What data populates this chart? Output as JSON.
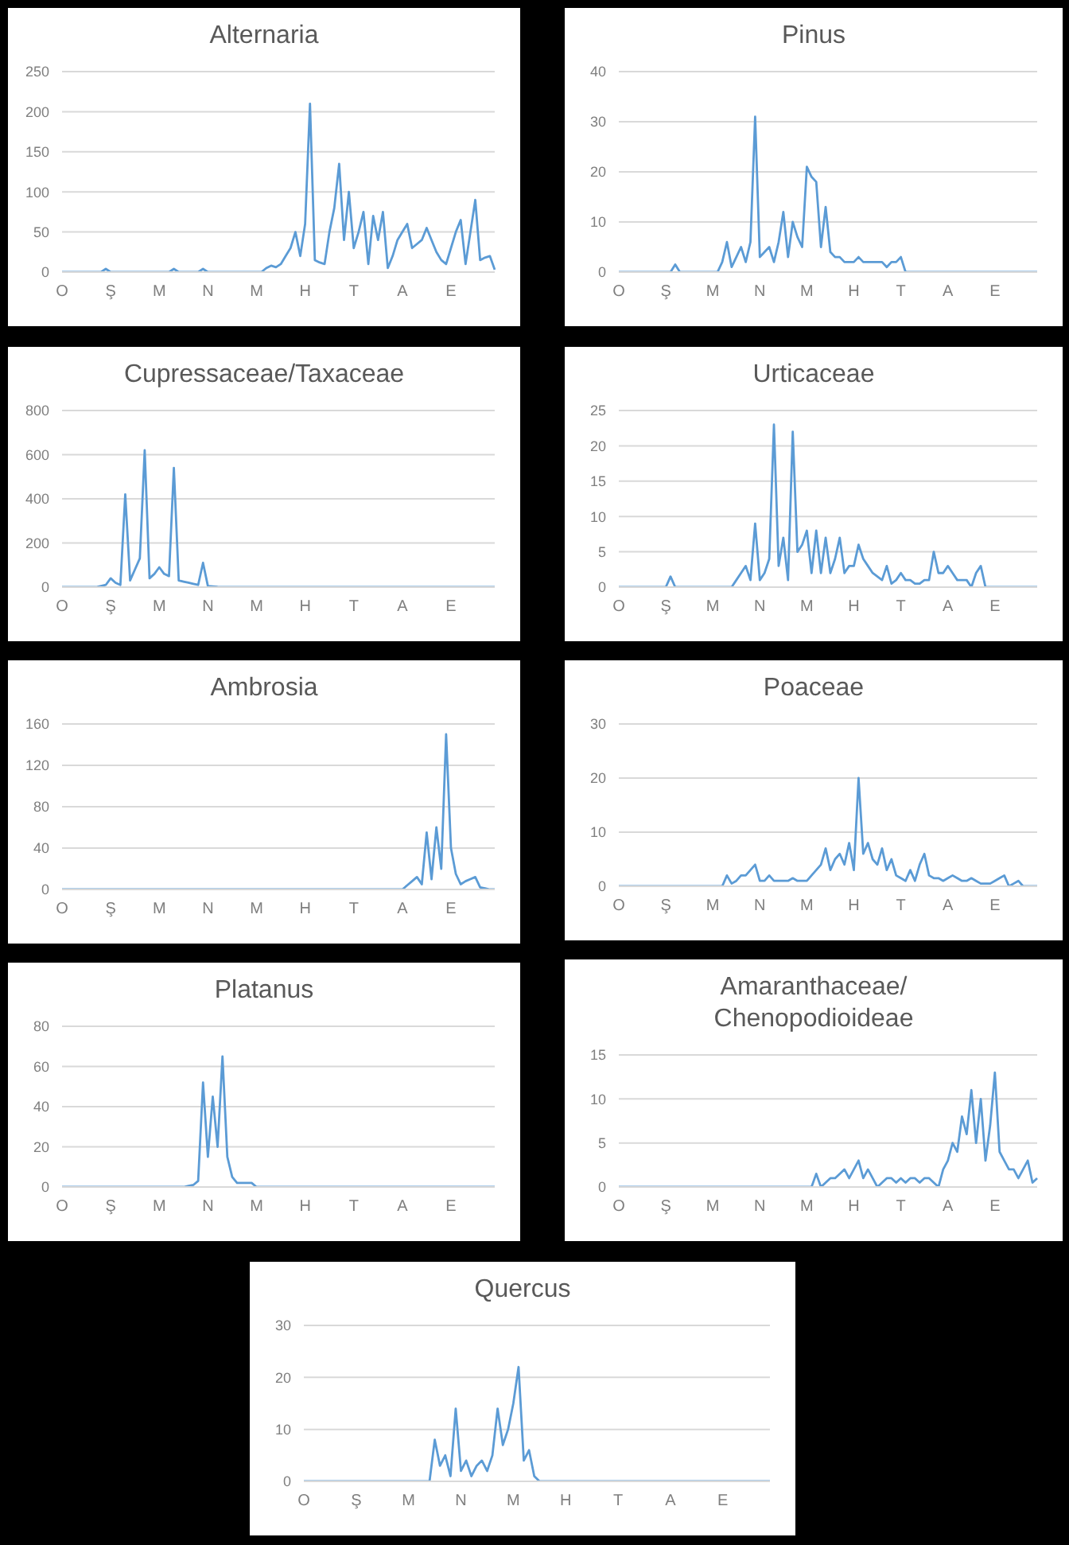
{
  "chart_data": [
    {
      "type": "line",
      "title": "Alternaria",
      "color": "#5b9bd5",
      "grid": "y",
      "ylim": [
        0,
        250
      ],
      "yticks": [
        0,
        50,
        100,
        150,
        200,
        250
      ],
      "categories": [
        "O",
        null,
        null,
        null,
        null,
        null,
        null,
        null,
        null,
        null,
        "Ş",
        null,
        null,
        null,
        null,
        null,
        null,
        null,
        null,
        null,
        "M",
        null,
        null,
        null,
        null,
        null,
        null,
        null,
        null,
        null,
        "N",
        null,
        null,
        null,
        null,
        null,
        null,
        null,
        null,
        null,
        "M",
        null,
        null,
        null,
        null,
        null,
        null,
        null,
        null,
        null,
        "H",
        null,
        null,
        null,
        null,
        null,
        null,
        null,
        null,
        null,
        "T",
        null,
        null,
        null,
        null,
        null,
        null,
        null,
        null,
        null,
        "A",
        null,
        null,
        null,
        null,
        null,
        null,
        null,
        null,
        null,
        "E",
        null,
        null,
        null,
        null,
        null,
        null,
        null,
        null,
        null
      ],
      "values": [
        0,
        0,
        0,
        0,
        0,
        0,
        0,
        0,
        0,
        4,
        0,
        0,
        0,
        0,
        0,
        0,
        0,
        0,
        0,
        0,
        0,
        0,
        0,
        4,
        0,
        0,
        0,
        0,
        0,
        4,
        0,
        0,
        0,
        0,
        0,
        0,
        0,
        0,
        0,
        0,
        0,
        0,
        5,
        8,
        6,
        10,
        20,
        30,
        50,
        20,
        60,
        210,
        15,
        12,
        10,
        50,
        80,
        135,
        40,
        100,
        30,
        50,
        75,
        10,
        70,
        40,
        75,
        5,
        20,
        40,
        50,
        60,
        30,
        35,
        40,
        55,
        40,
        25,
        15,
        10,
        30,
        50,
        65,
        10,
        50,
        90,
        15,
        18,
        20,
        3
      ]
    },
    {
      "type": "line",
      "title": "Pinus",
      "color": "#5b9bd5",
      "grid": "y",
      "ylim": [
        0,
        40
      ],
      "yticks": [
        0,
        10,
        20,
        30,
        40
      ],
      "categories": [
        "O",
        null,
        null,
        null,
        null,
        null,
        null,
        null,
        null,
        null,
        "Ş",
        null,
        null,
        null,
        null,
        null,
        null,
        null,
        null,
        null,
        "M",
        null,
        null,
        null,
        null,
        null,
        null,
        null,
        null,
        null,
        "N",
        null,
        null,
        null,
        null,
        null,
        null,
        null,
        null,
        null,
        "M",
        null,
        null,
        null,
        null,
        null,
        null,
        null,
        null,
        null,
        "H",
        null,
        null,
        null,
        null,
        null,
        null,
        null,
        null,
        null,
        "T",
        null,
        null,
        null,
        null,
        null,
        null,
        null,
        null,
        null,
        "A",
        null,
        null,
        null,
        null,
        null,
        null,
        null,
        null,
        null,
        "E",
        null,
        null,
        null,
        null,
        null,
        null,
        null,
        null,
        null
      ],
      "values": [
        0,
        0,
        0,
        0,
        0,
        0,
        0,
        0,
        0,
        0,
        0,
        0,
        1.5,
        0,
        0,
        0,
        0,
        0,
        0,
        0,
        0,
        0,
        2,
        6,
        1,
        3,
        5,
        2,
        6,
        31,
        3,
        4,
        5,
        2,
        6,
        12,
        3,
        10,
        7,
        5,
        21,
        19,
        18,
        5,
        13,
        4,
        3,
        3,
        2,
        2,
        2,
        3,
        2,
        2,
        2,
        2,
        2,
        1,
        2,
        2,
        3,
        0,
        0,
        0,
        0,
        0,
        0,
        0,
        0,
        0,
        0,
        0,
        0,
        0,
        0,
        0,
        0,
        0,
        0,
        0,
        0,
        0,
        0,
        0,
        0,
        0,
        0,
        0,
        0,
        0
      ]
    },
    {
      "type": "line",
      "title": "Cupressaceae/Taxaceae",
      "color": "#5b9bd5",
      "grid": "y",
      "ylim": [
        0,
        800
      ],
      "yticks": [
        0,
        200,
        400,
        600,
        800
      ],
      "categories": [
        "O",
        null,
        null,
        null,
        null,
        null,
        null,
        null,
        null,
        null,
        "Ş",
        null,
        null,
        null,
        null,
        null,
        null,
        null,
        null,
        null,
        "M",
        null,
        null,
        null,
        null,
        null,
        null,
        null,
        null,
        null,
        "N",
        null,
        null,
        null,
        null,
        null,
        null,
        null,
        null,
        null,
        "M",
        null,
        null,
        null,
        null,
        null,
        null,
        null,
        null,
        null,
        "H",
        null,
        null,
        null,
        null,
        null,
        null,
        null,
        null,
        null,
        "T",
        null,
        null,
        null,
        null,
        null,
        null,
        null,
        null,
        null,
        "A",
        null,
        null,
        null,
        null,
        null,
        null,
        null,
        null,
        null,
        "E",
        null,
        null,
        null,
        null,
        null,
        null,
        null,
        null,
        null
      ],
      "values": [
        0,
        0,
        0,
        0,
        0,
        0,
        0,
        0,
        5,
        10,
        40,
        20,
        10,
        420,
        30,
        80,
        130,
        620,
        40,
        60,
        90,
        60,
        50,
        540,
        30,
        25,
        20,
        15,
        10,
        110,
        5,
        3,
        1,
        0,
        0,
        0,
        0,
        0,
        0,
        0,
        0,
        0,
        0,
        0,
        0,
        0,
        0,
        0,
        0,
        0,
        0,
        0,
        0,
        0,
        0,
        0,
        0,
        0,
        0,
        0,
        0,
        0,
        0,
        0,
        0,
        0,
        0,
        0,
        0,
        0,
        0,
        0,
        0,
        0,
        0,
        0,
        0,
        0,
        0,
        0,
        0,
        0,
        0,
        0,
        0,
        0,
        0,
        0,
        0,
        0
      ]
    },
    {
      "type": "line",
      "title": "Urticaceae",
      "color": "#5b9bd5",
      "grid": "y",
      "ylim": [
        0,
        25
      ],
      "yticks": [
        0,
        5,
        10,
        15,
        20,
        25
      ],
      "categories": [
        "O",
        null,
        null,
        null,
        null,
        null,
        null,
        null,
        null,
        null,
        "Ş",
        null,
        null,
        null,
        null,
        null,
        null,
        null,
        null,
        null,
        "M",
        null,
        null,
        null,
        null,
        null,
        null,
        null,
        null,
        null,
        "N",
        null,
        null,
        null,
        null,
        null,
        null,
        null,
        null,
        null,
        "M",
        null,
        null,
        null,
        null,
        null,
        null,
        null,
        null,
        null,
        "H",
        null,
        null,
        null,
        null,
        null,
        null,
        null,
        null,
        null,
        "T",
        null,
        null,
        null,
        null,
        null,
        null,
        null,
        null,
        null,
        "A",
        null,
        null,
        null,
        null,
        null,
        null,
        null,
        null,
        null,
        "E",
        null,
        null,
        null,
        null,
        null,
        null,
        null,
        null,
        null
      ],
      "values": [
        0,
        0,
        0,
        0,
        0,
        0,
        0,
        0,
        0,
        0,
        0,
        1.5,
        0,
        0,
        0,
        0,
        0,
        0,
        0,
        0,
        0,
        0,
        0,
        0,
        0,
        1,
        2,
        3,
        1,
        9,
        1,
        2,
        4,
        23,
        3,
        7,
        1,
        22,
        5,
        6,
        8,
        2,
        8,
        2,
        7,
        2,
        4,
        7,
        2,
        3,
        3,
        6,
        4,
        3,
        2,
        1.5,
        1,
        3,
        0.5,
        1,
        2,
        1,
        1,
        0.5,
        0.5,
        1,
        1,
        5,
        2,
        2,
        3,
        2,
        1,
        1,
        1,
        0,
        2,
        3,
        0,
        0,
        0,
        0,
        0,
        0,
        0,
        0,
        0,
        0,
        0,
        0
      ]
    },
    {
      "type": "line",
      "title": "Ambrosia",
      "color": "#5b9bd5",
      "grid": "y",
      "ylim": [
        0,
        160
      ],
      "yticks": [
        0,
        40,
        80,
        120,
        160
      ],
      "categories": [
        "O",
        null,
        null,
        null,
        null,
        null,
        null,
        null,
        null,
        null,
        "Ş",
        null,
        null,
        null,
        null,
        null,
        null,
        null,
        null,
        null,
        "M",
        null,
        null,
        null,
        null,
        null,
        null,
        null,
        null,
        null,
        "N",
        null,
        null,
        null,
        null,
        null,
        null,
        null,
        null,
        null,
        "M",
        null,
        null,
        null,
        null,
        null,
        null,
        null,
        null,
        null,
        "H",
        null,
        null,
        null,
        null,
        null,
        null,
        null,
        null,
        null,
        "T",
        null,
        null,
        null,
        null,
        null,
        null,
        null,
        null,
        null,
        "A",
        null,
        null,
        null,
        null,
        null,
        null,
        null,
        null,
        null,
        "E",
        null,
        null,
        null,
        null,
        null,
        null,
        null,
        null,
        null
      ],
      "values": [
        0,
        0,
        0,
        0,
        0,
        0,
        0,
        0,
        0,
        0,
        0,
        0,
        0,
        0,
        0,
        0,
        0,
        0,
        0,
        0,
        0,
        0,
        0,
        0,
        0,
        0,
        0,
        0,
        0,
        0,
        0,
        0,
        0,
        0,
        0,
        0,
        0,
        0,
        0,
        0,
        0,
        0,
        0,
        0,
        0,
        0,
        0,
        0,
        0,
        0,
        0,
        0,
        0,
        0,
        0,
        0,
        0,
        0,
        0,
        0,
        0,
        0,
        0,
        0,
        0,
        0,
        0,
        0,
        0,
        0,
        0,
        4,
        8,
        12,
        5,
        55,
        10,
        60,
        20,
        150,
        40,
        15,
        5,
        8,
        10,
        12,
        2,
        1,
        0,
        0
      ]
    },
    {
      "type": "line",
      "title": "Poaceae",
      "color": "#5b9bd5",
      "grid": "y",
      "ylim": [
        0,
        30
      ],
      "yticks": [
        0,
        10,
        20,
        30
      ],
      "categories": [
        "O",
        null,
        null,
        null,
        null,
        null,
        null,
        null,
        null,
        null,
        "Ş",
        null,
        null,
        null,
        null,
        null,
        null,
        null,
        null,
        null,
        "M",
        null,
        null,
        null,
        null,
        null,
        null,
        null,
        null,
        null,
        "N",
        null,
        null,
        null,
        null,
        null,
        null,
        null,
        null,
        null,
        "M",
        null,
        null,
        null,
        null,
        null,
        null,
        null,
        null,
        null,
        "H",
        null,
        null,
        null,
        null,
        null,
        null,
        null,
        null,
        null,
        "T",
        null,
        null,
        null,
        null,
        null,
        null,
        null,
        null,
        null,
        "A",
        null,
        null,
        null,
        null,
        null,
        null,
        null,
        null,
        null,
        "E",
        null,
        null,
        null,
        null,
        null,
        null,
        null,
        null,
        null
      ],
      "values": [
        0,
        0,
        0,
        0,
        0,
        0,
        0,
        0,
        0,
        0,
        0,
        0,
        0,
        0,
        0,
        0,
        0,
        0,
        0,
        0,
        0,
        0,
        0,
        2,
        0.5,
        1,
        2,
        2,
        3,
        4,
        1,
        1,
        2,
        1,
        1,
        1,
        1,
        1.5,
        1,
        1,
        1,
        2,
        3,
        4,
        7,
        3,
        5,
        6,
        4,
        8,
        3,
        20,
        6,
        8,
        5,
        4,
        7,
        3,
        5,
        2,
        1.5,
        1,
        3,
        1,
        4,
        6,
        2,
        1.5,
        1.5,
        1,
        1.5,
        2,
        1.5,
        1,
        1,
        1.5,
        1,
        0.5,
        0.5,
        0.5,
        1,
        1.5,
        2,
        0,
        0.5,
        1,
        0,
        0,
        0,
        0
      ]
    },
    {
      "type": "line",
      "title": "Platanus",
      "color": "#5b9bd5",
      "grid": "y",
      "ylim": [
        0,
        80
      ],
      "yticks": [
        0,
        20,
        40,
        60,
        80
      ],
      "categories": [
        "O",
        null,
        null,
        null,
        null,
        null,
        null,
        null,
        null,
        null,
        "Ş",
        null,
        null,
        null,
        null,
        null,
        null,
        null,
        null,
        null,
        "M",
        null,
        null,
        null,
        null,
        null,
        null,
        null,
        null,
        null,
        "N",
        null,
        null,
        null,
        null,
        null,
        null,
        null,
        null,
        null,
        "M",
        null,
        null,
        null,
        null,
        null,
        null,
        null,
        null,
        null,
        "H",
        null,
        null,
        null,
        null,
        null,
        null,
        null,
        null,
        null,
        "T",
        null,
        null,
        null,
        null,
        null,
        null,
        null,
        null,
        null,
        "A",
        null,
        null,
        null,
        null,
        null,
        null,
        null,
        null,
        null,
        "E",
        null,
        null,
        null,
        null,
        null,
        null,
        null,
        null,
        null
      ],
      "values": [
        0,
        0,
        0,
        0,
        0,
        0,
        0,
        0,
        0,
        0,
        0,
        0,
        0,
        0,
        0,
        0,
        0,
        0,
        0,
        0,
        0,
        0,
        0,
        0,
        0,
        0,
        0.5,
        1,
        3,
        52,
        15,
        45,
        20,
        65,
        15,
        5,
        2,
        2,
        2,
        2,
        0,
        0,
        0,
        0,
        0,
        0,
        0,
        0,
        0,
        0,
        0,
        0,
        0,
        0,
        0,
        0,
        0,
        0,
        0,
        0,
        0,
        0,
        0,
        0,
        0,
        0,
        0,
        0,
        0,
        0,
        0,
        0,
        0,
        0,
        0,
        0,
        0,
        0,
        0,
        0,
        0,
        0,
        0,
        0,
        0,
        0,
        0,
        0,
        0,
        0
      ]
    },
    {
      "type": "line",
      "title": "Amaranthaceae/\nChenopodioideae",
      "color": "#5b9bd5",
      "grid": "y",
      "ylim": [
        0,
        15
      ],
      "yticks": [
        0,
        5,
        10,
        15
      ],
      "categories": [
        "O",
        null,
        null,
        null,
        null,
        null,
        null,
        null,
        null,
        null,
        "Ş",
        null,
        null,
        null,
        null,
        null,
        null,
        null,
        null,
        null,
        "M",
        null,
        null,
        null,
        null,
        null,
        null,
        null,
        null,
        null,
        "N",
        null,
        null,
        null,
        null,
        null,
        null,
        null,
        null,
        null,
        "M",
        null,
        null,
        null,
        null,
        null,
        null,
        null,
        null,
        null,
        "H",
        null,
        null,
        null,
        null,
        null,
        null,
        null,
        null,
        null,
        "T",
        null,
        null,
        null,
        null,
        null,
        null,
        null,
        null,
        null,
        "A",
        null,
        null,
        null,
        null,
        null,
        null,
        null,
        null,
        null,
        "E",
        null,
        null,
        null,
        null,
        null,
        null,
        null,
        null,
        null
      ],
      "values": [
        0,
        0,
        0,
        0,
        0,
        0,
        0,
        0,
        0,
        0,
        0,
        0,
        0,
        0,
        0,
        0,
        0,
        0,
        0,
        0,
        0,
        0,
        0,
        0,
        0,
        0,
        0,
        0,
        0,
        0,
        0,
        0,
        0,
        0,
        0,
        0,
        0,
        0,
        0,
        0,
        0,
        0,
        1.5,
        0,
        0.5,
        1,
        1,
        1.5,
        2,
        1,
        2,
        3,
        1,
        2,
        1,
        0,
        0.5,
        1,
        1,
        0.5,
        1,
        0.5,
        1,
        1,
        0.5,
        1,
        1,
        0.5,
        0,
        2,
        3,
        5,
        4,
        8,
        6,
        11,
        5,
        10,
        3,
        7,
        13,
        4,
        3,
        2,
        2,
        1,
        2,
        3,
        0.5,
        1
      ]
    },
    {
      "type": "line",
      "title": "Quercus",
      "color": "#5b9bd5",
      "grid": "y",
      "ylim": [
        0,
        30
      ],
      "yticks": [
        0,
        10,
        20,
        30
      ],
      "categories": [
        "O",
        null,
        null,
        null,
        null,
        null,
        null,
        null,
        null,
        null,
        "Ş",
        null,
        null,
        null,
        null,
        null,
        null,
        null,
        null,
        null,
        "M",
        null,
        null,
        null,
        null,
        null,
        null,
        null,
        null,
        null,
        "N",
        null,
        null,
        null,
        null,
        null,
        null,
        null,
        null,
        null,
        "M",
        null,
        null,
        null,
        null,
        null,
        null,
        null,
        null,
        null,
        "H",
        null,
        null,
        null,
        null,
        null,
        null,
        null,
        null,
        null,
        "T",
        null,
        null,
        null,
        null,
        null,
        null,
        null,
        null,
        null,
        "A",
        null,
        null,
        null,
        null,
        null,
        null,
        null,
        null,
        null,
        "E",
        null,
        null,
        null,
        null,
        null,
        null,
        null,
        null,
        null
      ],
      "values": [
        0,
        0,
        0,
        0,
        0,
        0,
        0,
        0,
        0,
        0,
        0,
        0,
        0,
        0,
        0,
        0,
        0,
        0,
        0,
        0,
        0,
        0,
        0,
        0,
        0,
        8,
        3,
        5,
        1,
        14,
        2,
        4,
        1,
        3,
        4,
        2,
        5,
        14,
        7,
        10,
        15,
        22,
        4,
        6,
        1,
        0,
        0,
        0,
        0,
        0,
        0,
        0,
        0,
        0,
        0,
        0,
        0,
        0,
        0,
        0,
        0,
        0,
        0,
        0,
        0,
        0,
        0,
        0,
        0,
        0,
        0,
        0,
        0,
        0,
        0,
        0,
        0,
        0,
        0,
        0,
        0,
        0,
        0,
        0,
        0,
        0,
        0,
        0,
        0,
        0
      ]
    }
  ]
}
